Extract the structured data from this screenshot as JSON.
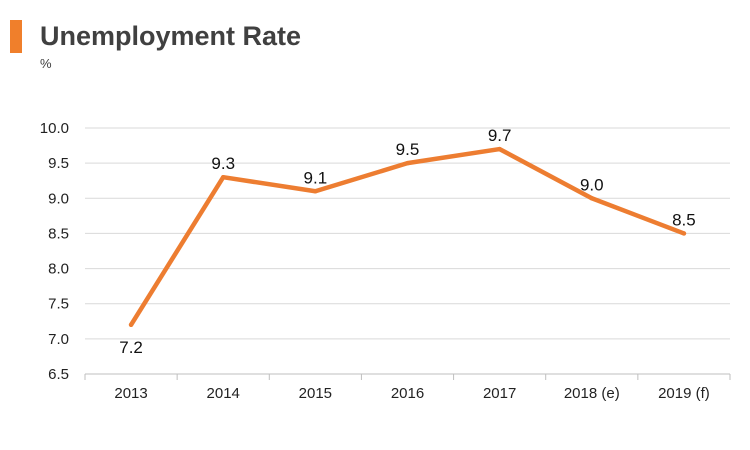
{
  "header": {
    "title": "Unemployment Rate",
    "unit": "%"
  },
  "colors": {
    "accent": "#f07f2b",
    "line": "#ed7d31",
    "grid": "#d9d9d9",
    "axis": "#bfbfbf"
  },
  "chart_data": {
    "type": "line",
    "title": "Unemployment Rate",
    "ylabel": "%",
    "categories": [
      "2013",
      "2014",
      "2015",
      "2016",
      "2017",
      "2018 (e)",
      "2019 (f)"
    ],
    "series": [
      {
        "values": [
          7.2,
          9.3,
          9.1,
          9.5,
          9.7,
          9.0,
          8.5
        ]
      }
    ],
    "data_labels": [
      "7.2",
      "9.3",
      "9.1",
      "9.5",
      "9.7",
      "9.0",
      "8.5"
    ],
    "ylim": [
      6.5,
      10.0
    ],
    "yticks": [
      "6.5",
      "7.0",
      "7.5",
      "8.0",
      "8.5",
      "9.0",
      "9.5",
      "10.0"
    ],
    "grid": true,
    "legend": "none"
  }
}
